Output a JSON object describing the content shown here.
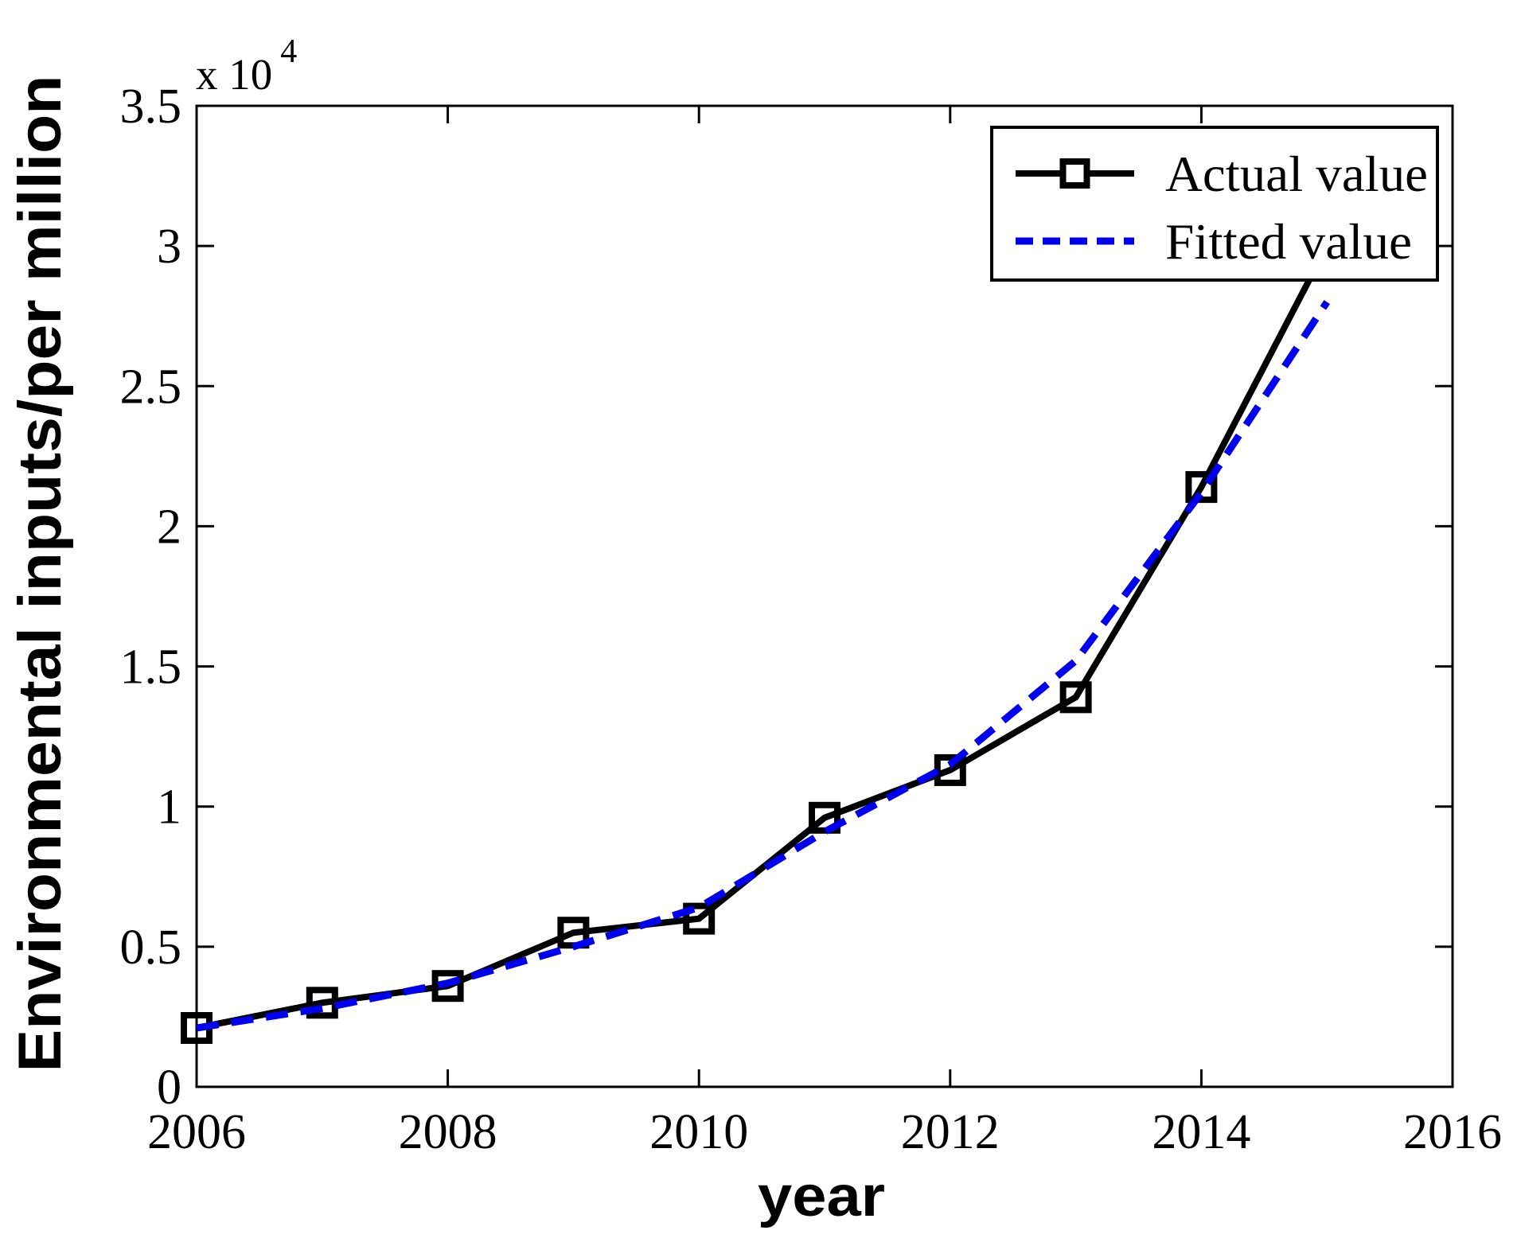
{
  "chart_data": {
    "type": "line",
    "title": "",
    "xlabel": "year",
    "ylabel": "Environmental inputs/per million",
    "y_axis": {
      "multiplier_base": "x 10",
      "multiplier_exponent": "4",
      "tick_labels": [
        "0",
        "0.5",
        "1",
        "1.5",
        "2",
        "2.5",
        "3",
        "3.5"
      ],
      "tick_values": [
        0,
        5000,
        10000,
        15000,
        20000,
        25000,
        30000,
        35000
      ]
    },
    "x_axis": {
      "tick_labels": [
        "2006",
        "2008",
        "2010",
        "2012",
        "2014",
        "2016"
      ],
      "tick_values": [
        2006,
        2008,
        2010,
        2012,
        2014,
        2016
      ]
    },
    "xlim": [
      2006,
      2016
    ],
    "ylim": [
      0,
      35000
    ],
    "grid": false,
    "background": "#ffffff",
    "x": [
      2006,
      2007,
      2008,
      2009,
      2010,
      2011,
      2012,
      2013,
      2014,
      2015
    ],
    "series": [
      {
        "name": "Actual value",
        "color": "#000000",
        "line_style": "solid",
        "marker": "square",
        "values": [
          2100,
          3000,
          3600,
          5500,
          6000,
          9600,
          11300,
          13900,
          21400,
          30000
        ]
      },
      {
        "name": "Fitted value",
        "color": "#0000ee",
        "line_style": "dashed",
        "marker": "none",
        "values": [
          2100,
          2800,
          3700,
          5000,
          6400,
          9100,
          11500,
          15200,
          21200,
          28000
        ]
      }
    ],
    "legend": {
      "position": "top-right",
      "items": [
        "Actual value",
        "Fitted value"
      ]
    }
  }
}
